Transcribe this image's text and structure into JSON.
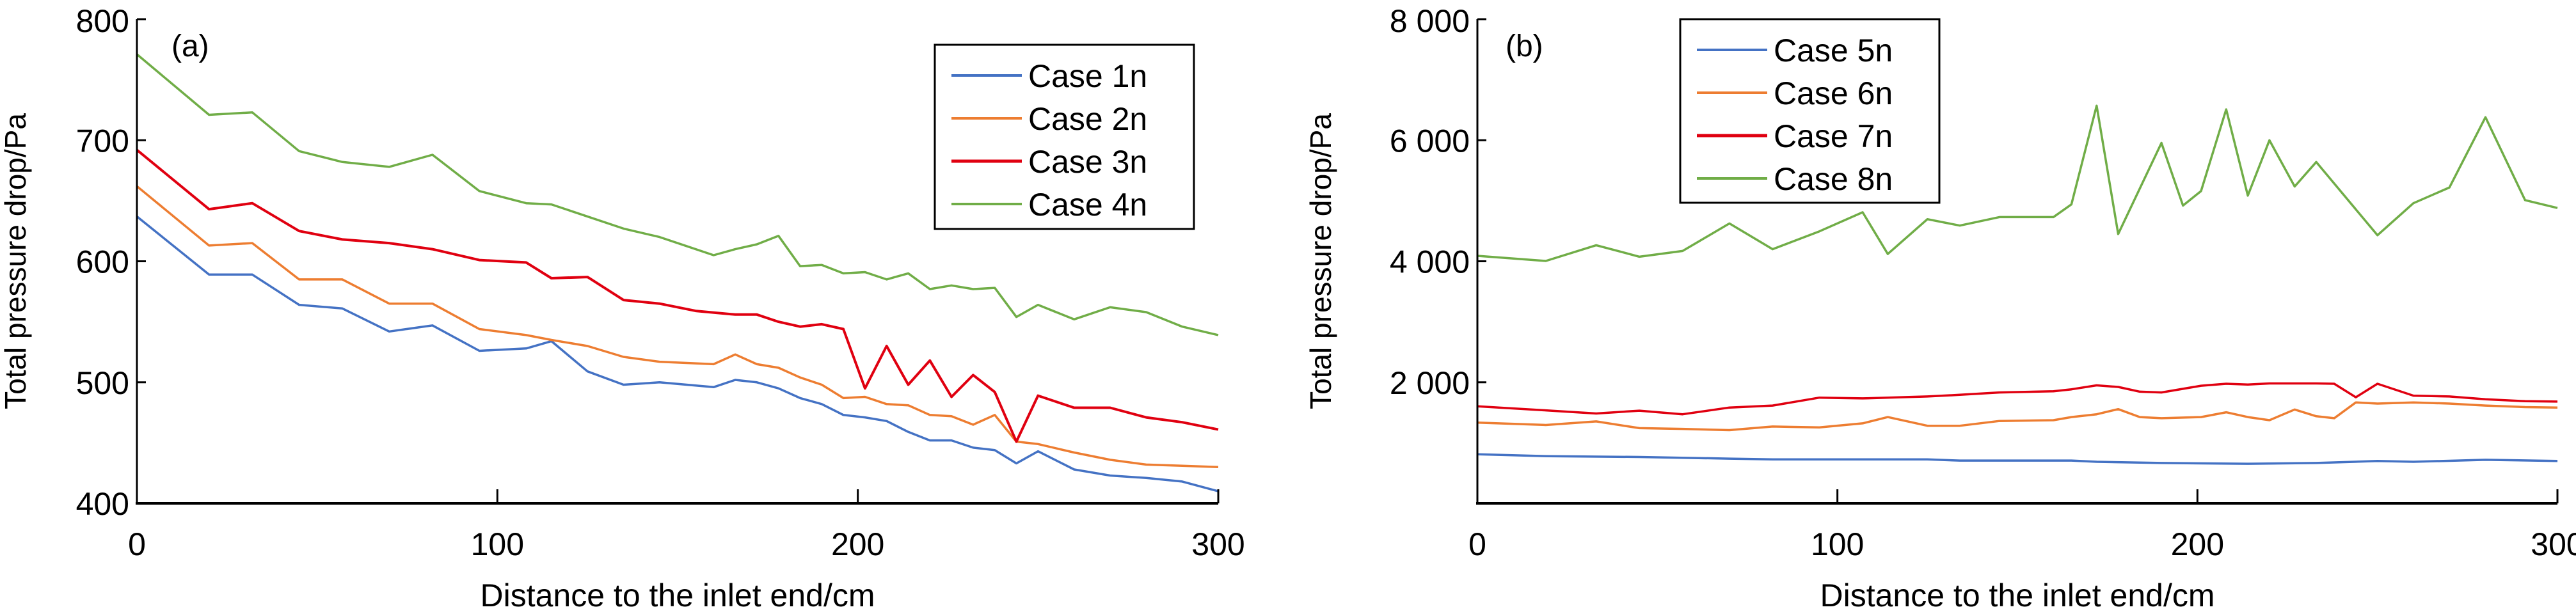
{
  "chart_data": [
    {
      "type": "line",
      "panel_label": "(a)",
      "xlabel": "Distance to the inlet end/cm",
      "ylabel": "Total pressure drop/Pa",
      "xlim": [
        0,
        300
      ],
      "ylim": [
        400,
        800
      ],
      "xticks": [
        0,
        100,
        200,
        300
      ],
      "xtick_labels": [
        "0",
        "100",
        "200",
        "300"
      ],
      "yticks": [
        400,
        500,
        600,
        700,
        800
      ],
      "ytick_labels": [
        "400",
        "500",
        "600",
        "700",
        "800"
      ],
      "legend_position": "top-right",
      "grid": false,
      "series": [
        {
          "name": "Case 1n",
          "color": "#4472C4",
          "x": [
            0,
            20,
            32,
            45,
            57,
            70,
            82,
            95,
            108,
            115,
            125,
            135,
            145,
            160,
            166,
            172,
            178,
            184,
            190,
            196,
            202,
            208,
            214,
            220,
            226,
            232,
            238,
            244,
            250,
            260,
            270,
            280,
            290,
            300
          ],
          "y": [
            637,
            589,
            589,
            564,
            561,
            542,
            547,
            526,
            528,
            534,
            509,
            498,
            500,
            496,
            502,
            500,
            495,
            487,
            482,
            473,
            471,
            468,
            459,
            452,
            452,
            446,
            444,
            433,
            443,
            428,
            423,
            421,
            418,
            410
          ]
        },
        {
          "name": "Case 2n",
          "color": "#ED7D31",
          "x": [
            0,
            20,
            32,
            45,
            57,
            70,
            82,
            95,
            108,
            115,
            125,
            135,
            145,
            160,
            166,
            172,
            178,
            184,
            190,
            196,
            202,
            208,
            214,
            220,
            226,
            232,
            238,
            244,
            250,
            260,
            270,
            280,
            290,
            300
          ],
          "y": [
            662,
            613,
            615,
            585,
            585,
            565,
            565,
            544,
            539,
            535,
            530,
            521,
            517,
            515,
            523,
            515,
            512,
            504,
            498,
            487,
            488,
            482,
            481,
            473,
            472,
            465,
            473,
            451,
            449,
            442,
            436,
            432,
            431,
            430
          ]
        },
        {
          "name": "Case 3n",
          "color": "#E00010",
          "x": [
            0,
            20,
            32,
            45,
            57,
            70,
            82,
            95,
            108,
            115,
            125,
            135,
            145,
            155,
            166,
            172,
            178,
            184,
            190,
            196,
            202,
            208,
            214,
            220,
            226,
            232,
            238,
            244,
            250,
            260,
            270,
            280,
            290,
            300
          ],
          "y": [
            692,
            643,
            648,
            625,
            618,
            615,
            610,
            601,
            599,
            586,
            587,
            568,
            565,
            559,
            556,
            556,
            550,
            546,
            548,
            544,
            495,
            530,
            498,
            518,
            488,
            506,
            492,
            451,
            489,
            479,
            479,
            471,
            467,
            461
          ]
        },
        {
          "name": "Case 4n",
          "color": "#70AD47",
          "x": [
            0,
            20,
            32,
            45,
            57,
            70,
            82,
            95,
            108,
            115,
            135,
            145,
            160,
            166,
            172,
            178,
            184,
            190,
            196,
            202,
            208,
            214,
            220,
            226,
            232,
            238,
            244,
            250,
            260,
            270,
            280,
            290,
            300
          ],
          "y": [
            771,
            721,
            723,
            691,
            682,
            678,
            688,
            658,
            648,
            647,
            627,
            620,
            605,
            610,
            614,
            621,
            596,
            597,
            590,
            591,
            585,
            590,
            577,
            580,
            577,
            578,
            554,
            564,
            552,
            562,
            558,
            546,
            539
          ]
        }
      ]
    },
    {
      "type": "line",
      "panel_label": "(b)",
      "xlabel": "Distance to the inlet end/cm",
      "ylabel": "Total pressure drop/Pa",
      "xlim": [
        0,
        300
      ],
      "ylim": [
        0,
        8000
      ],
      "xticks": [
        0,
        100,
        200,
        300
      ],
      "xtick_labels": [
        "0",
        "100",
        "200",
        "300"
      ],
      "yticks": [
        2000,
        4000,
        6000,
        8000
      ],
      "ytick_labels": [
        "2 000",
        "4 000",
        "6 000",
        "8 000"
      ],
      "legend_position": "top-left",
      "grid": false,
      "series": [
        {
          "name": "Case 5n",
          "color": "#4472C4",
          "x": [
            0,
            20,
            45,
            70,
            82,
            107,
            125,
            134,
            165,
            172,
            190,
            214,
            233,
            250,
            260,
            280,
            300
          ],
          "y": [
            811,
            779,
            766,
            739,
            726,
            726,
            726,
            707,
            707,
            687,
            667,
            654,
            667,
            700,
            687,
            720,
            700
          ]
        },
        {
          "name": "Case 6n",
          "color": "#ED7D31",
          "x": [
            0,
            19,
            33,
            45,
            57,
            70,
            82,
            95,
            107,
            114,
            125,
            134,
            145,
            160,
            165,
            172,
            178,
            184,
            190,
            201,
            208,
            214,
            220,
            227,
            233,
            238,
            244,
            250,
            260,
            270,
            280,
            291,
            300
          ],
          "y": [
            1335,
            1295,
            1354,
            1243,
            1230,
            1210,
            1269,
            1256,
            1322,
            1426,
            1282,
            1282,
            1361,
            1374,
            1426,
            1472,
            1557,
            1426,
            1407,
            1426,
            1505,
            1426,
            1374,
            1550,
            1439,
            1407,
            1668,
            1649,
            1668,
            1649,
            1616,
            1590,
            1583
          ]
        },
        {
          "name": "Case 7n",
          "color": "#E00010",
          "x": [
            0,
            19,
            33,
            45,
            57,
            70,
            82,
            95,
            107,
            125,
            134,
            145,
            160,
            165,
            172,
            178,
            184,
            190,
            201,
            208,
            214,
            220,
            233,
            238,
            244,
            250,
            260,
            270,
            280,
            291,
            300
          ],
          "y": [
            1603,
            1537,
            1485,
            1531,
            1472,
            1583,
            1616,
            1747,
            1734,
            1766,
            1793,
            1832,
            1851,
            1884,
            1950,
            1923,
            1845,
            1832,
            1943,
            1976,
            1963,
            1982,
            1982,
            1976,
            1753,
            1976,
            1780,
            1766,
            1721,
            1688,
            1681
          ]
        },
        {
          "name": "Case 8n",
          "color": "#70AD47",
          "x": [
            0,
            19,
            33,
            45,
            57,
            70,
            82,
            95,
            107,
            114,
            125,
            134,
            145,
            160,
            165,
            172,
            178,
            190,
            196,
            201,
            208,
            214,
            220,
            227,
            233,
            250,
            260,
            270,
            280,
            291,
            300
          ],
          "y": [
            4090,
            4005,
            4265,
            4075,
            4170,
            4625,
            4200,
            4495,
            4810,
            4120,
            4695,
            4590,
            4730,
            4730,
            4940,
            6570,
            4450,
            5955,
            4920,
            5160,
            6510,
            5085,
            6000,
            5235,
            5640,
            4430,
            4960,
            5220,
            6380,
            5010,
            4880
          ]
        }
      ]
    }
  ]
}
